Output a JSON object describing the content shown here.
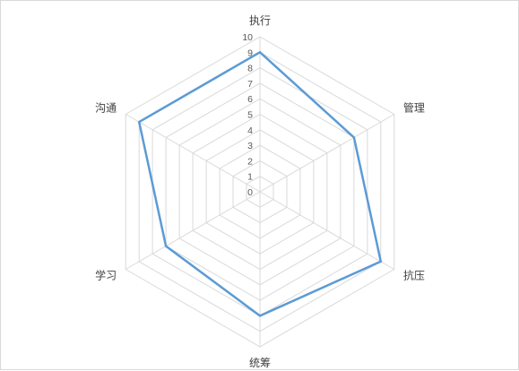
{
  "chart_data": {
    "type": "radar",
    "categories": [
      "执行",
      "管理",
      "抗压",
      "统筹",
      "学习",
      "沟通"
    ],
    "series": [
      {
        "values": [
          9,
          7,
          9,
          8,
          7,
          9
        ]
      }
    ],
    "rlim": [
      0,
      10
    ],
    "ticks": [
      "0",
      "1",
      "2",
      "3",
      "4",
      "5",
      "6",
      "7",
      "8",
      "9",
      "10"
    ],
    "grid": true,
    "legend": "none",
    "series_color": "#5b9bd5",
    "grid_color": "#d9d9d9"
  }
}
